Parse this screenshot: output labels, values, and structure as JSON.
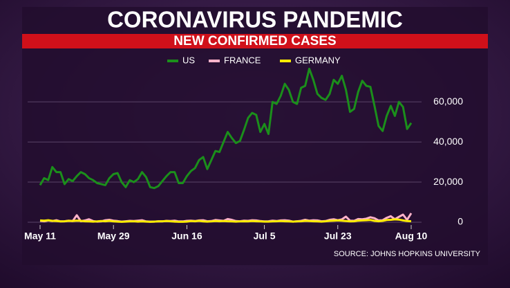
{
  "chart_data": {
    "type": "line",
    "title": "CORONAVIRUS PANDEMIC",
    "subtitle": "NEW CONFIRMED CASES",
    "source": "SOURCE: JOHNS HOPKINS UNIVERSITY",
    "categories": [
      "May 11",
      null,
      null,
      null,
      null,
      null,
      null,
      null,
      null,
      null,
      null,
      null,
      null,
      null,
      null,
      null,
      null,
      null,
      "May 29",
      null,
      null,
      null,
      null,
      null,
      null,
      null,
      null,
      null,
      null,
      null,
      null,
      null,
      null,
      null,
      null,
      null,
      "Jun 16",
      null,
      null,
      null,
      null,
      null,
      null,
      null,
      null,
      null,
      null,
      null,
      null,
      null,
      null,
      null,
      null,
      null,
      null,
      "Jul 5",
      null,
      null,
      null,
      null,
      null,
      null,
      null,
      null,
      null,
      null,
      null,
      null,
      null,
      null,
      null,
      null,
      null,
      "Jul 23",
      null,
      null,
      null,
      null,
      null,
      null,
      null,
      null,
      null,
      null,
      null,
      null,
      null,
      null,
      null,
      null,
      null,
      "Aug 10"
    ],
    "series": [
      {
        "name": "US",
        "color": "#1b8f1b",
        "values": [
          18500,
          22000,
          21000,
          27500,
          25000,
          25000,
          19000,
          21500,
          20500,
          23000,
          25000,
          24000,
          22000,
          21000,
          19500,
          19000,
          18500,
          22000,
          24000,
          24500,
          20000,
          17500,
          21000,
          20000,
          21500,
          25000,
          22500,
          17500,
          17000,
          18000,
          20500,
          23000,
          25000,
          25000,
          19500,
          19500,
          23000,
          25500,
          27000,
          31000,
          32500,
          26500,
          31000,
          35500,
          35000,
          40000,
          45000,
          42000,
          39500,
          40500,
          46000,
          52000,
          54500,
          53500,
          45000,
          49000,
          44000,
          60000,
          59000,
          63000,
          69000,
          66000,
          60000,
          59000,
          67000,
          68000,
          76500,
          71000,
          64000,
          62000,
          61000,
          64000,
          71000,
          69000,
          73000,
          66000,
          55000,
          56500,
          65000,
          70500,
          68000,
          67500,
          58000,
          48000,
          45500,
          53000,
          58000,
          53000,
          60000,
          57500,
          46500,
          49500
        ]
      },
      {
        "name": "FRANCE",
        "color": "#ffb3c9",
        "values": [
          700,
          500,
          900,
          600,
          1000,
          400,
          500,
          800,
          600,
          3500,
          500,
          900,
          1500,
          600,
          300,
          400,
          1000,
          1200,
          800,
          600,
          300,
          500,
          700,
          600,
          800,
          1000,
          400,
          300,
          300,
          500,
          400,
          700,
          600,
          800,
          400,
          400,
          700,
          800,
          600,
          900,
          1000,
          500,
          600,
          1100,
          900,
          700,
          1600,
          1200,
          600,
          500,
          800,
          700,
          1000,
          900,
          600,
          400,
          500,
          800,
          600,
          900,
          1000,
          800,
          300,
          500,
          700,
          1200,
          800,
          1000,
          900,
          500,
          600,
          1200,
          1500,
          1000,
          1400,
          2800,
          800,
          700,
          1600,
          1500,
          1800,
          2500,
          2000,
          900,
          1000,
          2200,
          3000,
          1500,
          2700,
          3800,
          1200,
          4500
        ]
      },
      {
        "name": "GERMANY",
        "color": "#ffec00",
        "values": [
          900,
          800,
          1000,
          700,
          600,
          400,
          500,
          700,
          600,
          800,
          700,
          500,
          400,
          300,
          400,
          600,
          500,
          700,
          400,
          300,
          200,
          300,
          400,
          500,
          300,
          400,
          300,
          200,
          300,
          400,
          500,
          600,
          500,
          300,
          200,
          200,
          300,
          600,
          500,
          700,
          400,
          300,
          400,
          600,
          500,
          600,
          500,
          400,
          300,
          400,
          500,
          400,
          600,
          500,
          400,
          300,
          300,
          400,
          500,
          600,
          500,
          400,
          300,
          400,
          500,
          700,
          600,
          500,
          400,
          300,
          500,
          700,
          800,
          900,
          800,
          600,
          400,
          500,
          800,
          900,
          1000,
          1100,
          700,
          500,
          700,
          1100,
          1200,
          1400,
          1300,
          900,
          600,
          500
        ]
      }
    ],
    "ylim": [
      0,
      78000
    ],
    "yticks": [
      0,
      {
        "value": 20000,
        "label": "20,000"
      },
      {
        "value": 40000,
        "label": "40,000"
      },
      {
        "value": 60000,
        "label": "60,000"
      }
    ],
    "grid": true
  }
}
